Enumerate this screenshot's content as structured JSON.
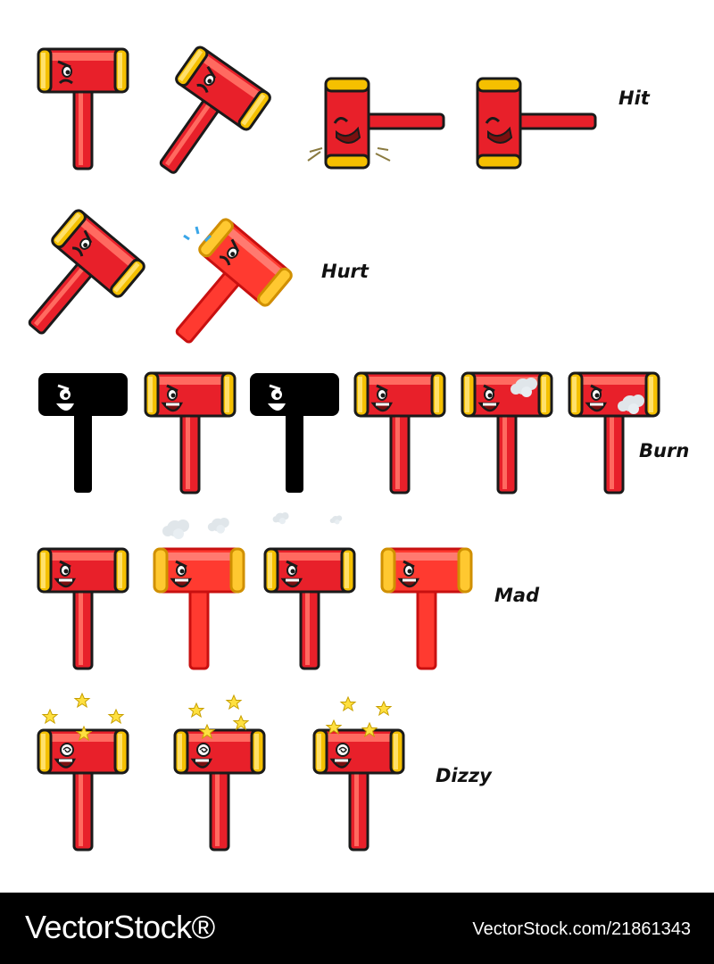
{
  "labels": {
    "hit": "Hit",
    "hurt": "Hurt",
    "burn": "Burn",
    "mad": "Mad",
    "dizzy": "Dizzy"
  },
  "footer": {
    "logo": "VectorStock®",
    "id": "VectorStock.com/21861343"
  },
  "colors": {
    "body": "#e8202a",
    "body_light": "#ff4a40",
    "gold": "#f5c000",
    "gold_light": "#ffe06a",
    "outline": "#1a1a1a",
    "charred": "#000000",
    "star": "#ffe040",
    "smoke": "#e0e6ea",
    "sweat": "#3aa6e8"
  },
  "icons": {
    "hammer": "hammer-mascot-icon",
    "star": "star-icon",
    "smoke": "smoke-puff-icon",
    "sweat": "sweat-drop-icon"
  }
}
